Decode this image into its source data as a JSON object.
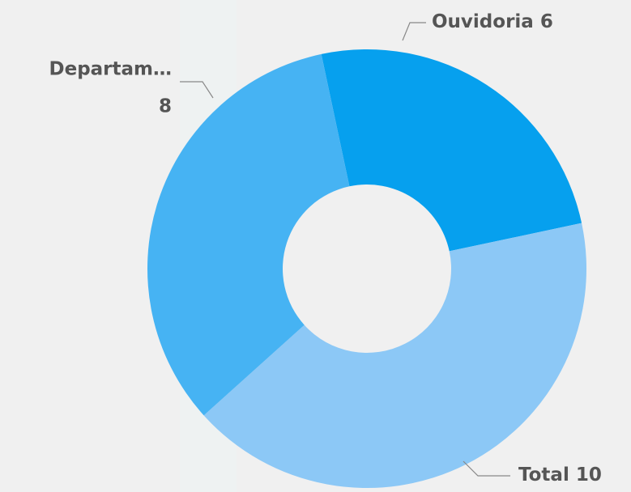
{
  "chart_data": {
    "type": "donut",
    "categories": [
      "Ouvidoria",
      "Total",
      "Departam…"
    ],
    "values": [
      6,
      10,
      8
    ],
    "colors": [
      "#06a0ee",
      "#8cc8f6",
      "#46b3f3"
    ]
  }
}
